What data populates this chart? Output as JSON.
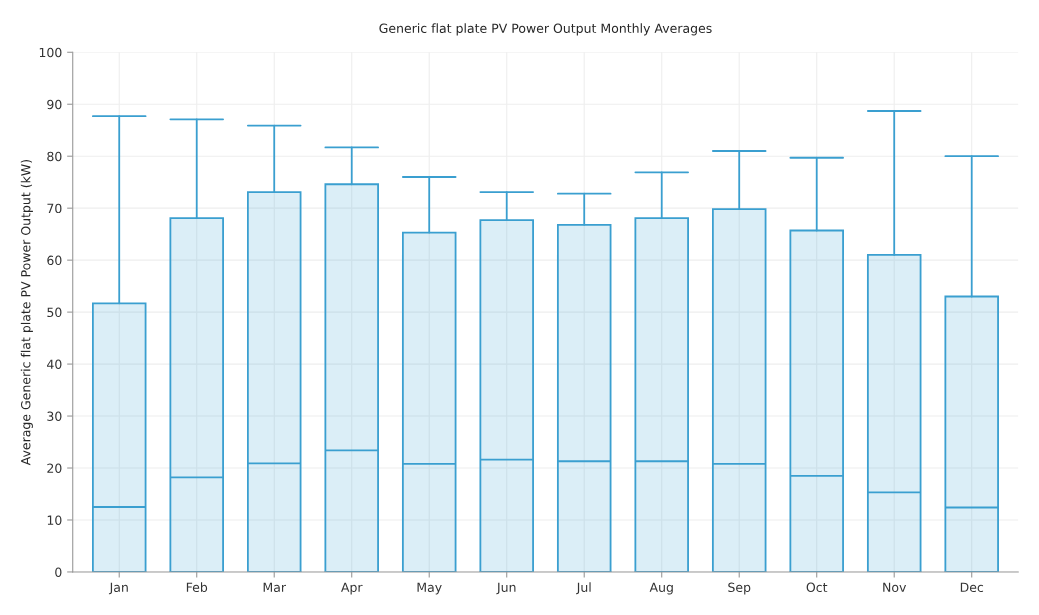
{
  "chart_data": {
    "type": "box",
    "title": "Generic flat plate PV Power Output Monthly Averages",
    "ylabel": "Average Generic flat plate PV Power Output (kW)",
    "categories": [
      "Jan",
      "Feb",
      "Mar",
      "Apr",
      "May",
      "Jun",
      "Jul",
      "Aug",
      "Sep",
      "Oct",
      "Nov",
      "Dec"
    ],
    "ylim": [
      0,
      100
    ],
    "yticks": [
      0,
      10,
      20,
      30,
      40,
      50,
      60,
      70,
      80,
      90,
      100
    ],
    "grid": true,
    "series": [
      {
        "color": "#3a9fd0",
        "boxes": [
          {
            "low": 0,
            "q1": 0,
            "median": 12.5,
            "q3": 51.7,
            "high": 87.7
          },
          {
            "low": 0,
            "q1": 0,
            "median": 18.2,
            "q3": 68.1,
            "high": 87.1
          },
          {
            "low": 0,
            "q1": 0,
            "median": 20.9,
            "q3": 73.1,
            "high": 85.9
          },
          {
            "low": 0,
            "q1": 0,
            "median": 23.4,
            "q3": 74.6,
            "high": 81.7
          },
          {
            "low": 0,
            "q1": 0,
            "median": 20.8,
            "q3": 65.3,
            "high": 76.0
          },
          {
            "low": 0,
            "q1": 0,
            "median": 21.6,
            "q3": 67.7,
            "high": 73.1
          },
          {
            "low": 0,
            "q1": 0,
            "median": 21.3,
            "q3": 66.8,
            "high": 72.8
          },
          {
            "low": 0,
            "q1": 0,
            "median": 21.3,
            "q3": 68.1,
            "high": 76.9
          },
          {
            "low": 0,
            "q1": 0,
            "median": 20.8,
            "q3": 69.8,
            "high": 81.0
          },
          {
            "low": 0,
            "q1": 0,
            "median": 18.5,
            "q3": 65.7,
            "high": 79.7
          },
          {
            "low": 0,
            "q1": 0,
            "median": 15.3,
            "q3": 61.0,
            "high": 88.7
          },
          {
            "low": 0,
            "q1": 0,
            "median": 12.4,
            "q3": 53.0,
            "high": 80.0
          }
        ]
      }
    ]
  }
}
